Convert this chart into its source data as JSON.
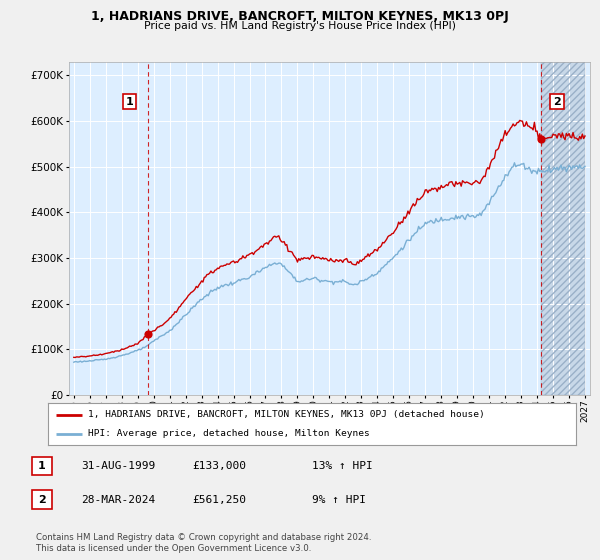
{
  "title": "1, HADRIANS DRIVE, BANCROFT, MILTON KEYNES, MK13 0PJ",
  "subtitle": "Price paid vs. HM Land Registry's House Price Index (HPI)",
  "ytick_values": [
    0,
    100000,
    200000,
    300000,
    400000,
    500000,
    600000,
    700000
  ],
  "ylim": [
    0,
    730000
  ],
  "xlim_left": 1994.7,
  "xlim_right": 2027.3,
  "sale1_year": 1999.667,
  "sale1_price": 133000,
  "sale2_year": 2024.25,
  "sale2_price": 561250,
  "legend_line1": "1, HADRIANS DRIVE, BANCROFT, MILTON KEYNES, MK13 0PJ (detached house)",
  "legend_line2": "HPI: Average price, detached house, Milton Keynes",
  "table_rows": [
    {
      "num": "1",
      "date": "31-AUG-1999",
      "price": "£133,000",
      "hpi": "13% ↑ HPI"
    },
    {
      "num": "2",
      "date": "28-MAR-2024",
      "price": "£561,250",
      "hpi": "9% ↑ HPI"
    }
  ],
  "footnote": "Contains HM Land Registry data © Crown copyright and database right 2024.\nThis data is licensed under the Open Government Licence v3.0.",
  "line_color_red": "#cc0000",
  "line_color_blue": "#7aafd4",
  "plot_bg": "#ddeeff",
  "bg_color": "#f0f0f0",
  "grid_color": "#ffffff",
  "hatch_color": "#c8d8e8",
  "future_start": 2024.25,
  "xtick_years": [
    1995,
    1996,
    1997,
    1998,
    1999,
    2000,
    2001,
    2002,
    2003,
    2004,
    2005,
    2006,
    2007,
    2008,
    2009,
    2010,
    2011,
    2012,
    2013,
    2014,
    2015,
    2016,
    2017,
    2018,
    2019,
    2020,
    2021,
    2022,
    2023,
    2024,
    2025,
    2026,
    2027
  ]
}
